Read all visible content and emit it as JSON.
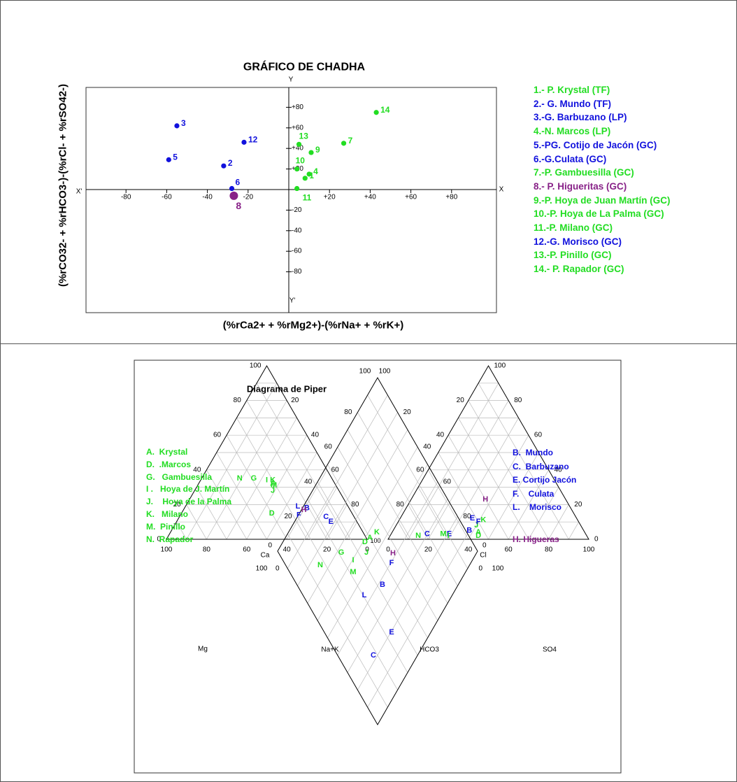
{
  "colors": {
    "green": "#22dd22",
    "blue": "#1111dd",
    "purple": "#882288",
    "dark": "#333333",
    "grid": "#bbbbbb"
  },
  "chart_data": [
    {
      "type": "scatter",
      "title": "GRÁFICO DE CHADHA",
      "xlabel": "(%rCa2+ + %rMg2+)-(%rNa+ + %rK+)",
      "ylabel": "(%rCO32- + %rHCO3-)-(%rCl- + %rSO42-)",
      "xlim": [
        -100,
        100
      ],
      "ylim": [
        -100,
        100
      ],
      "xticks": [
        "-80",
        "-60",
        "-40",
        "-20",
        "+20",
        "+40",
        "+60",
        "+80"
      ],
      "yticks": [
        "+80",
        "+60",
        "+40",
        "+20",
        "-20",
        "-40",
        "-60",
        "-80"
      ],
      "axis_letters": {
        "x_left": "X'",
        "x_right": "X",
        "y_top": "Y",
        "y_bottom": "Y'"
      },
      "points": [
        {
          "label": "1",
          "x": 8,
          "y": 11,
          "group": "green"
        },
        {
          "label": "2",
          "x": -32,
          "y": 23,
          "group": "blue"
        },
        {
          "label": "3",
          "x": -55,
          "y": 62,
          "group": "blue"
        },
        {
          "label": "4",
          "x": 10,
          "y": 15,
          "group": "green"
        },
        {
          "label": "5",
          "x": -59,
          "y": 29,
          "group": "blue"
        },
        {
          "label": "6",
          "x": -28,
          "y": 1,
          "group": "blue"
        },
        {
          "label": "7",
          "x": 27,
          "y": 45,
          "group": "green"
        },
        {
          "label": "8",
          "x": -27,
          "y": -6,
          "group": "purple"
        },
        {
          "label": "9",
          "x": 11,
          "y": 36,
          "group": "green"
        },
        {
          "label": "10",
          "x": 4,
          "y": 20,
          "group": "green"
        },
        {
          "label": "11",
          "x": 4,
          "y": 1,
          "group": "green"
        },
        {
          "label": "12",
          "x": -22,
          "y": 46,
          "group": "blue"
        },
        {
          "label": "13",
          "x": 5,
          "y": 44,
          "group": "green"
        },
        {
          "label": "14",
          "x": 43,
          "y": 75,
          "group": "green"
        }
      ],
      "legend": [
        {
          "text": "1.- P. Krystal (TF)",
          "group": "green"
        },
        {
          "text": "2.- G. Mundo (TF)",
          "group": "blue"
        },
        {
          "text": "3.-G. Barbuzano (LP)",
          "group": "blue"
        },
        {
          "text": "4.-N. Marcos (LP)",
          "group": "green"
        },
        {
          "text": "5.-PG. Cotijo de Jacón (GC)",
          "group": "blue"
        },
        {
          "text": "6.-G.Culata (GC)",
          "group": "blue"
        },
        {
          "text": "7.-P. Gambuesilla (GC)",
          "group": "green"
        },
        {
          "text": "8.- P. Higueritas (GC)",
          "group": "purple"
        },
        {
          "text": "9.-P. Hoya de Juan Martín (GC)",
          "group": "green"
        },
        {
          "text": "10.-P. Hoya de La Palma (GC)",
          "group": "green"
        },
        {
          "text": "11.-P. Milano (GC)",
          "group": "green"
        },
        {
          "text": "12.-G. Morisco (GC)",
          "group": "blue"
        },
        {
          "text": "13.-P. Pinillo (GC)",
          "group": "green"
        },
        {
          "text": "14.- P. Rapador (GC)",
          "group": "green"
        }
      ]
    },
    {
      "type": "piper",
      "title": "Diagrama de Piper",
      "cation_axis_labels": {
        "left": "Mg",
        "bottom": "Ca",
        "right": "Na+K"
      },
      "anion_axis_labels": {
        "left": "HCO3",
        "bottom": "Cl",
        "right": "SO4"
      },
      "tick_labels": [
        "0",
        "20",
        "40",
        "60",
        "80",
        "100"
      ],
      "cation_points": [
        {
          "label": "N",
          "ca": 46,
          "mg": 35,
          "group": "green"
        },
        {
          "label": "G",
          "ca": 39,
          "mg": 35,
          "group": "green"
        },
        {
          "label": "I",
          "ca": 33,
          "mg": 34,
          "group": "green"
        },
        {
          "label": "K",
          "ca": 30,
          "mg": 34,
          "group": "green"
        },
        {
          "label": "A",
          "ca": 31,
          "mg": 32,
          "group": "green"
        },
        {
          "label": "M",
          "ca": 31,
          "mg": 31,
          "group": "green"
        },
        {
          "label": "J",
          "ca": 33,
          "mg": 28,
          "group": "green"
        },
        {
          "label": "D",
          "ca": 40,
          "mg": 15,
          "group": "green"
        },
        {
          "label": "L",
          "ca": 25,
          "mg": 19,
          "group": "blue"
        },
        {
          "label": "B",
          "ca": 21,
          "mg": 18,
          "group": "blue"
        },
        {
          "label": "H",
          "ca": 23,
          "mg": 17,
          "group": "purple"
        },
        {
          "label": "F",
          "ca": 27,
          "mg": 14,
          "group": "blue"
        },
        {
          "label": "C",
          "ca": 14,
          "mg": 13,
          "group": "blue"
        },
        {
          "label": "E",
          "ca": 13,
          "mg": 10,
          "group": "blue"
        }
      ],
      "anion_points": [
        {
          "label": "N",
          "cl": 14,
          "so4": 2,
          "group": "green"
        },
        {
          "label": "C",
          "cl": 18,
          "so4": 3,
          "group": "blue"
        },
        {
          "label": "M",
          "cl": 26,
          "so4": 3,
          "group": "green"
        },
        {
          "label": "E",
          "cl": 29,
          "so4": 3,
          "group": "blue"
        },
        {
          "label": "I",
          "cl": 29,
          "so4": 2,
          "group": "green"
        },
        {
          "label": "B",
          "cl": 38,
          "so4": 5,
          "group": "blue"
        },
        {
          "label": "J",
          "cl": 40,
          "so4": 8,
          "group": "green"
        },
        {
          "label": "D",
          "cl": 44,
          "so4": 2,
          "group": "green"
        },
        {
          "label": "A",
          "cl": 43,
          "so4": 4,
          "group": "green"
        },
        {
          "label": "E",
          "cl": 36,
          "so4": 12,
          "group": "blue"
        },
        {
          "label": "F",
          "cl": 40,
          "so4": 10,
          "group": "blue"
        },
        {
          "label": "K",
          "cl": 42,
          "so4": 11,
          "group": "green"
        },
        {
          "label": "H",
          "cl": 37,
          "so4": 23,
          "group": "purple"
        }
      ],
      "diamond_points": [
        {
          "label": "K",
          "x": 539,
          "y": 761,
          "group": "green"
        },
        {
          "label": "A",
          "x": 529,
          "y": 769,
          "group": "green"
        },
        {
          "label": "D",
          "x": 522,
          "y": 775,
          "group": "green"
        },
        {
          "label": "H",
          "x": 562,
          "y": 791,
          "group": "purple"
        },
        {
          "label": "G",
          "x": 488,
          "y": 790,
          "group": "green"
        },
        {
          "label": "J",
          "x": 524,
          "y": 790,
          "group": "green"
        },
        {
          "label": "I",
          "x": 505,
          "y": 801,
          "group": "green"
        },
        {
          "label": "F",
          "x": 560,
          "y": 805,
          "group": "blue"
        },
        {
          "label": "N",
          "x": 458,
          "y": 808,
          "group": "green"
        },
        {
          "label": "M",
          "x": 505,
          "y": 818,
          "group": "green"
        },
        {
          "label": "B",
          "x": 547,
          "y": 836,
          "group": "blue"
        },
        {
          "label": "L",
          "x": 521,
          "y": 851,
          "group": "blue"
        },
        {
          "label": "E",
          "x": 560,
          "y": 904,
          "group": "blue"
        },
        {
          "label": "C",
          "x": 534,
          "y": 937,
          "group": "blue"
        }
      ],
      "legend_left": [
        {
          "text": "A.  Krystal",
          "group": "green"
        },
        {
          "text": "D.  .Marcos",
          "group": "green"
        },
        {
          "text": "G.   Gambuesilla",
          "group": "green"
        },
        {
          "text": "I .   Hoya de J. Martín",
          "group": "green"
        },
        {
          "text": "J.    Hoya de la Palma",
          "group": "green"
        },
        {
          "text": "K.   Milano",
          "group": "green"
        },
        {
          "text": "M.  Pinillo",
          "group": "green"
        },
        {
          "text": "N.  Rapador",
          "group": "green"
        }
      ],
      "legend_right": [
        {
          "text": "B.  Mundo",
          "group": "blue"
        },
        {
          "text": "C.  Barbuzano",
          "group": "blue"
        },
        {
          "text": "E. Cortijo Jacón",
          "group": "blue"
        },
        {
          "text": "F.    Culata",
          "group": "blue"
        },
        {
          "text": "L.    Morisco",
          "group": "blue"
        },
        {
          "text": "H. Higueras",
          "group": "purple"
        }
      ]
    }
  ]
}
